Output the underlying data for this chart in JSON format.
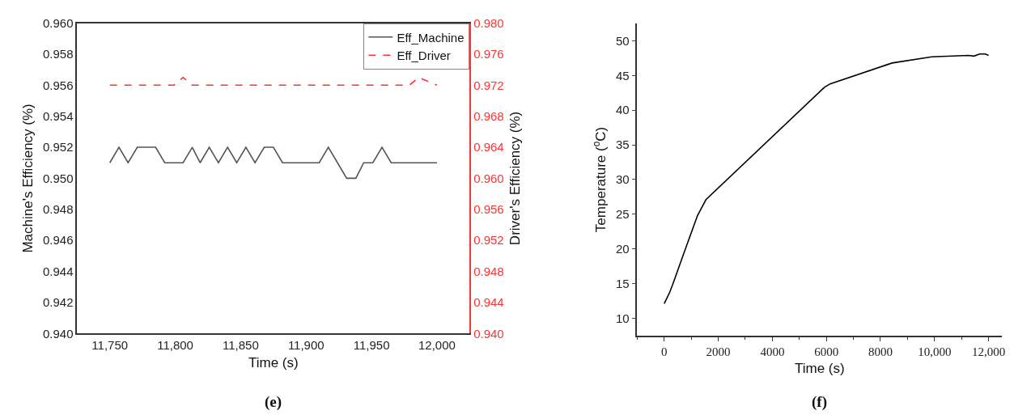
{
  "chart_data": [
    {
      "type": "line",
      "xlabel": "Time (s)",
      "ylabel": "Machine's Efficiency (%)",
      "y2label": "Driver's Efficiency (%)",
      "annotations": [
        "(e)"
      ],
      "x": [
        11750,
        11757,
        11764,
        11771,
        11778,
        11785,
        11792,
        11799,
        11806,
        11813,
        11819,
        11826,
        11833,
        11840,
        11847,
        11854,
        11861,
        11868,
        11875,
        11882,
        11889,
        11896,
        11903,
        11910,
        11917,
        11924,
        11931,
        11938,
        11944,
        11951,
        11958,
        11965,
        11972,
        11979,
        11986,
        11993,
        12000
      ],
      "series": [
        {
          "name": "Eff_Machine",
          "color": "#555555",
          "line_style": "solid",
          "values": [
            0.951,
            0.952,
            0.951,
            0.952,
            0.952,
            0.952,
            0.951,
            0.951,
            0.951,
            0.952,
            0.951,
            0.952,
            0.951,
            0.952,
            0.951,
            0.952,
            0.951,
            0.952,
            0.952,
            0.951,
            0.951,
            0.951,
            0.951,
            0.951,
            0.952,
            0.951,
            0.95,
            0.95,
            0.951,
            0.951,
            0.952,
            0.951,
            0.951,
            0.951,
            0.951,
            0.951,
            0.951
          ]
        },
        {
          "name": "Eff_Driver",
          "color": "#ff3333",
          "line_style": "dashed",
          "axis": "y2",
          "values": [
            0.972,
            0.972,
            0.972,
            0.972,
            0.972,
            0.972,
            0.972,
            0.972,
            0.973,
            0.972,
            0.972,
            0.972,
            0.972,
            0.972,
            0.972,
            0.972,
            0.972,
            0.972,
            0.972,
            0.972,
            0.972,
            0.972,
            0.972,
            0.972,
            0.972,
            0.972,
            0.972,
            0.972,
            0.972,
            0.972,
            0.972,
            0.972,
            0.972,
            0.972,
            0.973,
            0.9725,
            0.972
          ]
        }
      ],
      "xlim": [
        11725,
        12025
      ],
      "xticks": [
        {
          "value": 11750,
          "label": "11,750"
        },
        {
          "value": 11800,
          "label": "11,800"
        },
        {
          "value": 11850,
          "label": "11,850"
        },
        {
          "value": 11900,
          "label": "11,900"
        },
        {
          "value": 11950,
          "label": "11,950"
        },
        {
          "value": 12000,
          "label": "12,000"
        }
      ],
      "ylim": [
        0.94,
        0.96
      ],
      "yticks": [
        {
          "value": 0.94,
          "label": "0.940"
        },
        {
          "value": 0.942,
          "label": "0.942"
        },
        {
          "value": 0.944,
          "label": "0.944"
        },
        {
          "value": 0.946,
          "label": "0.946"
        },
        {
          "value": 0.948,
          "label": "0.948"
        },
        {
          "value": 0.95,
          "label": "0.950"
        },
        {
          "value": 0.952,
          "label": "0.952"
        },
        {
          "value": 0.954,
          "label": "0.954"
        },
        {
          "value": 0.956,
          "label": "0.956"
        },
        {
          "value": 0.958,
          "label": "0.958"
        },
        {
          "value": 0.96,
          "label": "0.960"
        }
      ],
      "y2lim": [
        0.94,
        0.98
      ],
      "y2ticks": [
        {
          "value": 0.94,
          "label": "0.940"
        },
        {
          "value": 0.944,
          "label": "0.944"
        },
        {
          "value": 0.948,
          "label": "0.948"
        },
        {
          "value": 0.952,
          "label": "0.952"
        },
        {
          "value": 0.956,
          "label": "0.956"
        },
        {
          "value": 0.96,
          "label": "0.960"
        },
        {
          "value": 0.964,
          "label": "0.964"
        },
        {
          "value": 0.968,
          "label": "0.968"
        },
        {
          "value": 0.972,
          "label": "0.972"
        },
        {
          "value": 0.976,
          "label": "0.976"
        },
        {
          "value": 0.98,
          "label": "0.980"
        }
      ],
      "legend": "top right",
      "marker": "none"
    },
    {
      "type": "line",
      "xlabel": "Time (s)",
      "ylabel": "Temperature ($^{o}$C)",
      "annotations": [
        "(f)"
      ],
      "series": [
        {
          "color": "#000000",
          "x": [
            0,
            210,
            345,
            710,
            1230,
            1545,
            5930,
            6140,
            8430,
            9900,
            11250,
            11460,
            11670,
            11880,
            12000
          ],
          "values": [
            12.1,
            13.8,
            15.2,
            19.2,
            24.8,
            27.1,
            43.3,
            43.8,
            46.8,
            47.7,
            47.9,
            47.8,
            48.1,
            48.1,
            47.9
          ]
        }
      ],
      "xlim": [
        -1000,
        12500
      ],
      "xticks": [
        0,
        2000,
        4000,
        6000,
        8000,
        {
          "value": 10000,
          "label": "10,000"
        },
        {
          "value": 12000,
          "label": "12,000"
        }
      ],
      "ylim": [
        7.5,
        52.5
      ],
      "yticks": [
        10,
        15,
        20,
        25,
        30,
        35,
        40,
        45,
        50
      ],
      "legend": false,
      "marker": "none"
    }
  ]
}
